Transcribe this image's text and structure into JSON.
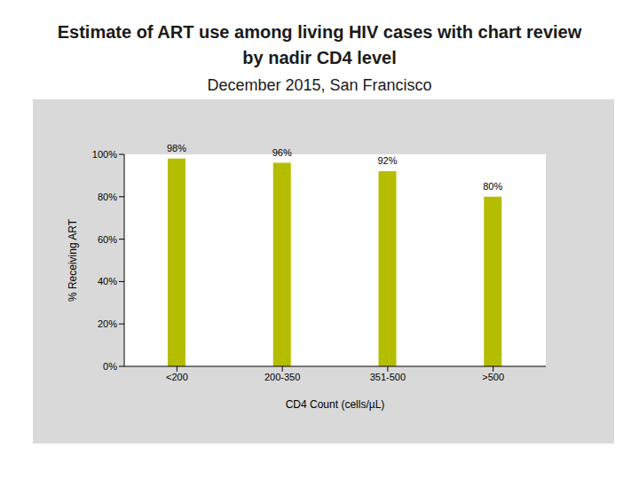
{
  "chart_data": {
    "type": "bar",
    "title": "Estimate of ART use among living HIV cases with chart review by nadir CD4 level",
    "subtitle": "December 2015, San Francisco",
    "x_label": "CD4 Count (cells/µL)",
    "y_label": "% Receiving ART",
    "categories": [
      "<200",
      "200-350",
      "351-500",
      ">500"
    ],
    "values": [
      98,
      96,
      92,
      80
    ],
    "value_labels": [
      "98%",
      "96%",
      "92%",
      "80%"
    ],
    "color": "#b5bd00",
    "ylim": [
      0,
      100
    ],
    "yticks": [
      {
        "value": 0,
        "label": "0%"
      },
      {
        "value": 20,
        "label": "20%"
      },
      {
        "value": 40,
        "label": "40%"
      },
      {
        "value": 60,
        "label": "60%"
      },
      {
        "value": 80,
        "label": "80%"
      },
      {
        "value": 100,
        "label": "100%"
      }
    ],
    "grid": false,
    "data_labels": true
  }
}
